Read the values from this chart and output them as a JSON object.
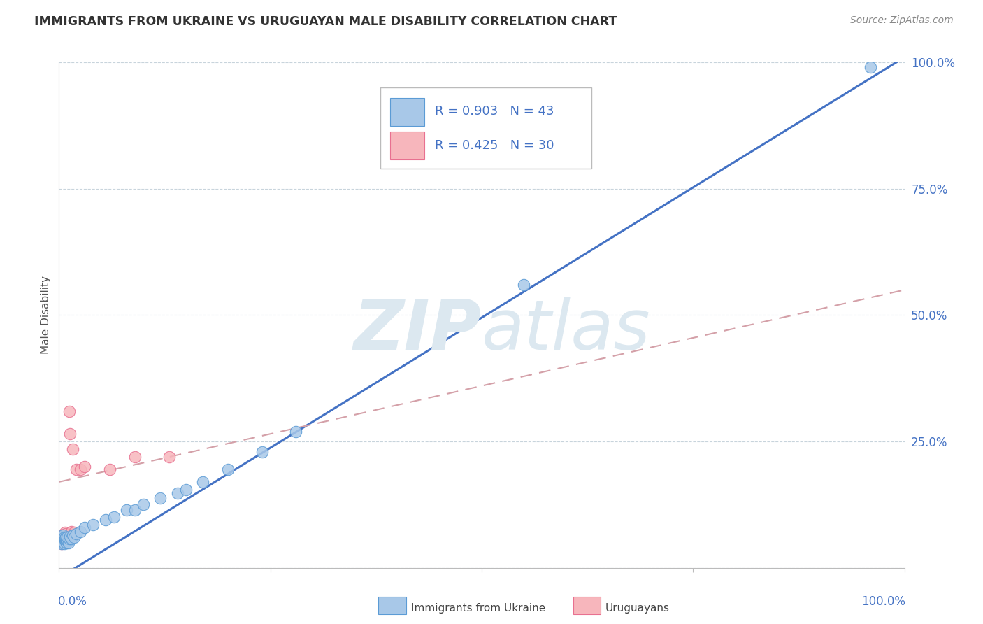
{
  "title": "IMMIGRANTS FROM UKRAINE VS URUGUAYAN MALE DISABILITY CORRELATION CHART",
  "source": "Source: ZipAtlas.com",
  "ylabel": "Male Disability",
  "xlim": [
    0,
    1
  ],
  "ylim": [
    0,
    1
  ],
  "yticks": [
    0.0,
    0.25,
    0.5,
    0.75,
    1.0
  ],
  "ytick_labels": [
    "",
    "25.0%",
    "50.0%",
    "75.0%",
    "100.0%"
  ],
  "legend1_r": "0.903",
  "legend1_n": "43",
  "legend2_r": "0.425",
  "legend2_n": "30",
  "blue_scatter_color": "#a8c8e8",
  "blue_scatter_edge": "#5b9bd5",
  "pink_scatter_color": "#f7b6bc",
  "pink_scatter_edge": "#e87090",
  "blue_line_color": "#4472c4",
  "pink_line_color": "#d4a0a8",
  "watermark_color": "#dce8f0",
  "background_color": "#ffffff",
  "grid_color": "#c8d4dc",
  "legend_text_color": "#4472c4",
  "ukraine_points_x": [
    0.001,
    0.002,
    0.002,
    0.003,
    0.003,
    0.004,
    0.004,
    0.005,
    0.005,
    0.006,
    0.006,
    0.007,
    0.007,
    0.008,
    0.008,
    0.009,
    0.009,
    0.01,
    0.01,
    0.011,
    0.012,
    0.013,
    0.015,
    0.016,
    0.018,
    0.02,
    0.025,
    0.03,
    0.04,
    0.055,
    0.065,
    0.08,
    0.09,
    0.1,
    0.12,
    0.14,
    0.15,
    0.17,
    0.2,
    0.24,
    0.28,
    0.55,
    0.96
  ],
  "ukraine_points_y": [
    0.055,
    0.05,
    0.06,
    0.048,
    0.062,
    0.055,
    0.058,
    0.052,
    0.065,
    0.048,
    0.06,
    0.055,
    0.058,
    0.052,
    0.06,
    0.05,
    0.055,
    0.055,
    0.06,
    0.05,
    0.058,
    0.062,
    0.058,
    0.065,
    0.06,
    0.068,
    0.072,
    0.08,
    0.085,
    0.095,
    0.1,
    0.115,
    0.115,
    0.125,
    0.138,
    0.148,
    0.155,
    0.17,
    0.195,
    0.23,
    0.27,
    0.56,
    0.99
  ],
  "uruguay_points_x": [
    0.001,
    0.002,
    0.002,
    0.003,
    0.003,
    0.004,
    0.004,
    0.005,
    0.005,
    0.006,
    0.006,
    0.007,
    0.007,
    0.008,
    0.008,
    0.009,
    0.01,
    0.011,
    0.012,
    0.013,
    0.013,
    0.015,
    0.016,
    0.018,
    0.02,
    0.025,
    0.03,
    0.06,
    0.09,
    0.13
  ],
  "uruguay_points_y": [
    0.055,
    0.05,
    0.06,
    0.048,
    0.065,
    0.055,
    0.058,
    0.052,
    0.06,
    0.058,
    0.062,
    0.07,
    0.058,
    0.068,
    0.058,
    0.06,
    0.062,
    0.065,
    0.31,
    0.265,
    0.068,
    0.072,
    0.235,
    0.07,
    0.195,
    0.195,
    0.2,
    0.195,
    0.22,
    0.22
  ]
}
